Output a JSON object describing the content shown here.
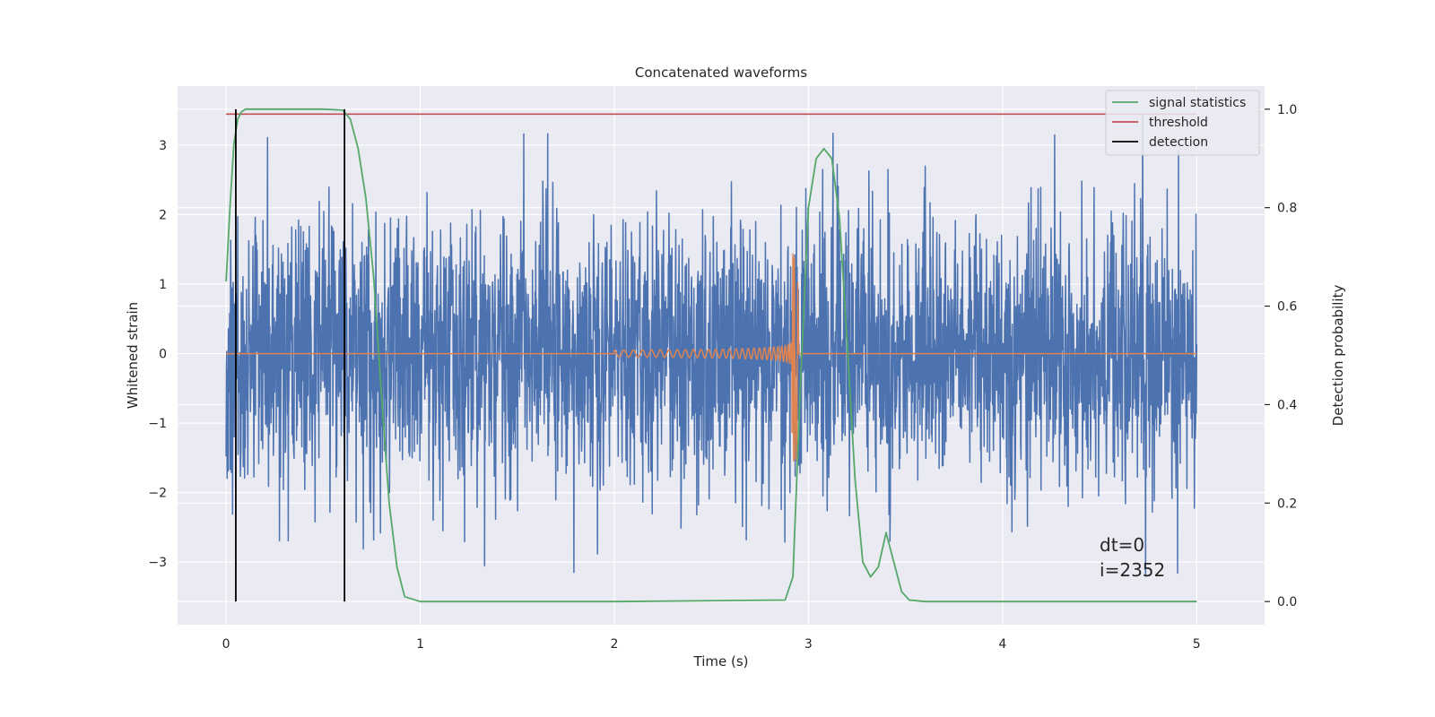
{
  "chart_data": {
    "type": "line",
    "title": "Concatenated waveforms",
    "xlabel": "Time (s)",
    "ylabel_left": "Whitened strain",
    "ylabel_right": "Detection probability",
    "xlim": [
      -0.25,
      5.35
    ],
    "ylim_left": [
      -3.9,
      3.85
    ],
    "ylim_right": [
      -0.047,
      1.047
    ],
    "xticks": [
      0,
      1,
      2,
      3,
      4,
      5
    ],
    "yticks_left": [
      -3,
      -2,
      -1,
      0,
      1,
      2,
      3
    ],
    "yticks_right": [
      0.0,
      0.2,
      0.4,
      0.6,
      0.8,
      1.0
    ],
    "xtick_labels": [
      "0",
      "1",
      "2",
      "3",
      "4",
      "5"
    ],
    "yticks_left_labels": [
      "−3",
      "−2",
      "−1",
      "0",
      "1",
      "2",
      "3"
    ],
    "yticks_right_labels": [
      "0.0",
      "0.2",
      "0.4",
      "0.6",
      "0.8",
      "1.0"
    ],
    "grid": true,
    "legend_position": "top-right",
    "legend": [
      "signal statistics",
      "threshold",
      "detection"
    ],
    "colors": {
      "background": "#eaeaf2",
      "strain": "#4c72b0",
      "waveform": "#dd8452",
      "signal_statistics": "#55a868",
      "threshold": "#c44e52",
      "detection": "#000000"
    },
    "series": [
      {
        "name": "strain",
        "axis": "left",
        "x_range": [
          0,
          5
        ],
        "approx_range": [
          -3.6,
          3.45
        ]
      },
      {
        "name": "waveform",
        "axis": "left",
        "x_range": [
          0,
          5
        ],
        "chirp_start": 2.0,
        "merger_time": 2.93,
        "merger_amplitude": [
          -1.55,
          1.45
        ]
      },
      {
        "name": "signal statistics",
        "axis": "right",
        "x": [
          0.0,
          0.02,
          0.04,
          0.06,
          0.08,
          0.1,
          0.15,
          0.3,
          0.5,
          0.6,
          0.64,
          0.68,
          0.72,
          0.76,
          0.8,
          0.84,
          0.88,
          0.92,
          1.0,
          2.0,
          2.88,
          2.92,
          2.96,
          3.0,
          3.04,
          3.08,
          3.12,
          3.16,
          3.2,
          3.24,
          3.28,
          3.32,
          3.36,
          3.4,
          3.44,
          3.48,
          3.52,
          3.6,
          5.0
        ],
        "values": [
          0.65,
          0.8,
          0.93,
          0.98,
          0.995,
          1.0,
          1.0,
          1.0,
          1.0,
          0.998,
          0.98,
          0.92,
          0.82,
          0.66,
          0.42,
          0.2,
          0.07,
          0.01,
          0.0,
          0.0,
          0.003,
          0.05,
          0.45,
          0.8,
          0.9,
          0.92,
          0.9,
          0.78,
          0.52,
          0.25,
          0.08,
          0.05,
          0.07,
          0.14,
          0.08,
          0.02,
          0.003,
          0.0,
          0.0
        ]
      },
      {
        "name": "threshold",
        "axis": "right",
        "x": [
          0,
          5
        ],
        "values": [
          0.99,
          0.99
        ]
      },
      {
        "name": "detection",
        "axis": "right",
        "x": [
          0.05,
          0.61
        ],
        "values": [
          0.0,
          1.0
        ]
      }
    ],
    "annotations": [
      "dt=0",
      "i=2352"
    ]
  }
}
